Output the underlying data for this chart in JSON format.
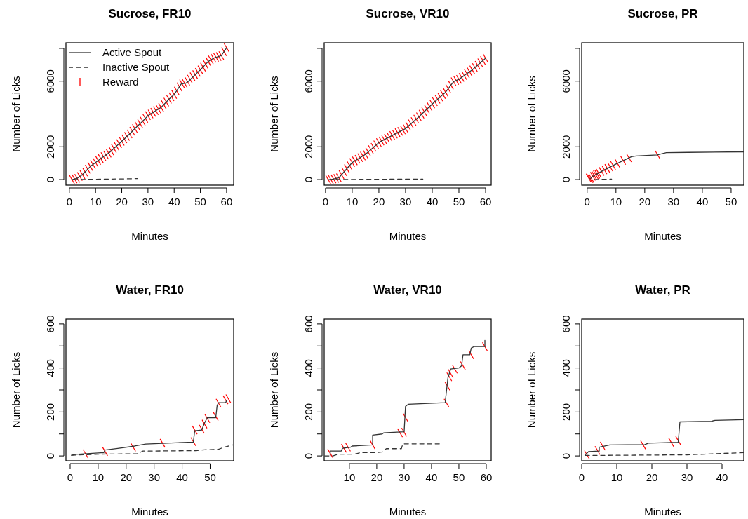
{
  "chart_data": [
    {
      "type": "line",
      "title": "Sucrose, FR10",
      "xlabel": "Minutes",
      "ylabel": "Number of Licks",
      "xlim": [
        -1.3,
        62.7
      ],
      "ylim": [
        -340,
        8340
      ],
      "xticks": [
        0,
        10,
        20,
        30,
        40,
        50,
        60
      ],
      "yticks": [
        0,
        2000,
        {
          "value": 4000,
          "label": null
        },
        6000,
        {
          "value": 8000,
          "label": null
        }
      ],
      "legend": "top left",
      "series": [
        {
          "name": "Active Spout",
          "line_style": "solid",
          "color": "#333333",
          "x": [
            1,
            3,
            5,
            8,
            10,
            13,
            15,
            18,
            20,
            23,
            25,
            28,
            30,
            33,
            35,
            38,
            40,
            42.7,
            44.5,
            45.5,
            48,
            50,
            53,
            55,
            58,
            60
          ],
          "values": [
            0,
            80,
            300,
            800,
            1040,
            1400,
            1610,
            2040,
            2330,
            2780,
            3110,
            3560,
            3900,
            4200,
            4400,
            4900,
            5190,
            5830,
            5880,
            6000,
            6400,
            6690,
            7200,
            7400,
            7560,
            8040
          ]
        },
        {
          "name": "Inactive Spout",
          "line_style": "dashed",
          "color": "#333333",
          "x": [
            1.5,
            10,
            20,
            26
          ],
          "values": [
            0,
            20,
            40,
            60
          ]
        },
        {
          "name": "Reward",
          "type": "scatter",
          "color": "#ff0000",
          "x": [
            1,
            2,
            3,
            4,
            5,
            6,
            7,
            8,
            9,
            10,
            11,
            12,
            13,
            14,
            15,
            16,
            17,
            18,
            19,
            20,
            21,
            22,
            23,
            24,
            25,
            26,
            27,
            28,
            29,
            30,
            31,
            32,
            33,
            34,
            35,
            36,
            37,
            38,
            39,
            40,
            41,
            42,
            43,
            44,
            45,
            46,
            47,
            48,
            49,
            50,
            51,
            52,
            53,
            54,
            55,
            56,
            57,
            58,
            59,
            60
          ],
          "values": [
            0,
            40,
            80,
            190,
            300,
            460,
            630,
            800,
            920,
            1040,
            1160,
            1280,
            1400,
            1500,
            1610,
            1750,
            1900,
            2040,
            2190,
            2330,
            2480,
            2630,
            2780,
            2950,
            3110,
            3260,
            3410,
            3560,
            3730,
            3900,
            4000,
            4100,
            4200,
            4300,
            4400,
            4570,
            4730,
            4900,
            5050,
            5190,
            5400,
            5650,
            5840,
            5870,
            6000,
            6130,
            6270,
            6400,
            6540,
            6690,
            6860,
            7030,
            7200,
            7300,
            7400,
            7450,
            7500,
            7560,
            7800,
            8040
          ]
        }
      ]
    },
    {
      "type": "line",
      "title": "Sucrose, VR10",
      "xlabel": "Minutes",
      "ylabel": "Number of Licks",
      "xlim": [
        -0.5,
        62.1
      ],
      "ylim": [
        -340,
        8340
      ],
      "xticks": [
        0,
        10,
        20,
        30,
        40,
        50,
        60
      ],
      "yticks": [
        0,
        2000,
        {
          "value": 4000,
          "label": null
        },
        6000,
        {
          "value": 8000,
          "label": null
        }
      ],
      "series": [
        {
          "line_style": "solid",
          "color": "#333333",
          "x": [
            2,
            5,
            10,
            15,
            20,
            25,
            30,
            35,
            40,
            45,
            48,
            50,
            55,
            60
          ],
          "values": [
            0,
            110,
            1040,
            1540,
            2260,
            2690,
            3110,
            3830,
            4610,
            5330,
            5970,
            6110,
            6690,
            7400
          ]
        },
        {
          "line_style": "dashed",
          "color": "#333333",
          "x": [
            1,
            10,
            20,
            36.5
          ],
          "values": [
            0,
            10,
            20,
            30
          ]
        },
        {
          "type": "scatter",
          "color": "#ff0000",
          "x": [
            1,
            2,
            3,
            4,
            5,
            6,
            7,
            8,
            9,
            10,
            11,
            12,
            13,
            14,
            15,
            16,
            17,
            18,
            19,
            20,
            21,
            22,
            23,
            24,
            25,
            26,
            27,
            28,
            29,
            30,
            31,
            32,
            33,
            34,
            35,
            36,
            37,
            38,
            39,
            40,
            41,
            42,
            43,
            44,
            45,
            46,
            47,
            48,
            49,
            50,
            51,
            52,
            53,
            54,
            55,
            56,
            57,
            58,
            59,
            60
          ],
          "values": [
            0,
            0,
            40,
            70,
            110,
            300,
            480,
            670,
            860,
            1040,
            1140,
            1240,
            1340,
            1440,
            1540,
            1680,
            1830,
            1970,
            2120,
            2260,
            2350,
            2430,
            2520,
            2600,
            2690,
            2770,
            2860,
            2940,
            3030,
            3110,
            3250,
            3400,
            3540,
            3690,
            3830,
            3990,
            4140,
            4300,
            4450,
            4610,
            4750,
            4900,
            5040,
            5190,
            5330,
            5540,
            5760,
            5970,
            6040,
            6110,
            6230,
            6340,
            6460,
            6570,
            6690,
            6830,
            6970,
            7120,
            7260,
            7400
          ]
        }
      ]
    },
    {
      "type": "line",
      "title": "Sucrose, PR",
      "xlabel": "Minutes",
      "ylabel": "Number of Licks",
      "xlim": [
        -1.9,
        54.4
      ],
      "ylim": [
        -340,
        8340
      ],
      "xticks": [
        0,
        10,
        20,
        30,
        40,
        50
      ],
      "yticks": [
        0,
        2000,
        {
          "value": 4000,
          "label": null
        },
        6000,
        {
          "value": 8000,
          "label": null
        }
      ],
      "series": [
        {
          "line_style": "solid",
          "color": "#333333",
          "x": [
            1,
            2,
            5,
            10,
            15.4,
            17,
            24.3,
            27.5,
            35,
            54.3
          ],
          "values": [
            50,
            200,
            500,
            950,
            1400,
            1440,
            1500,
            1640,
            1660,
            1690
          ]
        },
        {
          "line_style": "dashed",
          "color": "#333333",
          "x": [
            2.5,
            8.5
          ],
          "values": [
            0,
            30
          ]
        },
        {
          "type": "scatter",
          "color": "#ff0000",
          "x": [
            0.5,
            1,
            1.5,
            2,
            2.5,
            3,
            3.5,
            4,
            5,
            6,
            7,
            8,
            9,
            10.5,
            12.5,
            14.5,
            24.5
          ],
          "values": [
            100,
            50,
            60,
            200,
            230,
            290,
            330,
            380,
            500,
            590,
            680,
            770,
            860,
            990,
            1170,
            1330,
            1500
          ]
        }
      ]
    },
    {
      "type": "line",
      "title": "Water, FR10",
      "xlabel": "Minutes",
      "ylabel": "Number of Licks",
      "xlim": [
        -1.5,
        58.4
      ],
      "ylim": [
        -22,
        622
      ],
      "xticks": [
        0,
        10,
        20,
        30,
        40,
        50
      ],
      "yticks": [
        0,
        {
          "value": 100,
          "label": null
        },
        200,
        {
          "value": 300,
          "label": null
        },
        400,
        {
          "value": 500,
          "label": null
        },
        600
      ],
      "series": [
        {
          "line_style": "solid",
          "color": "#333333",
          "x": [
            0.5,
            2,
            12,
            12.5,
            17,
            23,
            27,
            44,
            44.5,
            47,
            48,
            49,
            52,
            52.5,
            53,
            55.5,
            56
          ],
          "values": [
            3,
            7,
            15,
            27,
            34,
            45,
            54,
            63,
            115,
            118,
            150,
            174,
            174,
            230,
            242,
            242,
            255
          ]
        },
        {
          "line_style": "dashed",
          "color": "#333333",
          "x": [
            0.5,
            10,
            24,
            26,
            45,
            48,
            53,
            55,
            58
          ],
          "values": [
            3,
            8,
            10,
            22,
            24,
            28,
            30,
            40,
            50
          ]
        },
        {
          "type": "scatter",
          "color": "#ff0000",
          "x": [
            5.5,
            12.5,
            22.5,
            33,
            44,
            44.5,
            47,
            48,
            49,
            52,
            53,
            55.5,
            56.5
          ],
          "values": [
            10,
            20,
            40,
            58,
            65,
            118,
            122,
            145,
            170,
            180,
            240,
            255,
            260
          ]
        }
      ]
    },
    {
      "type": "line",
      "title": "Water, VR10",
      "xlabel": "Minutes",
      "ylabel": "Number of Licks",
      "xlim": [
        0.8,
        61.8
      ],
      "ylim": [
        -22,
        622
      ],
      "xticks": [
        10,
        20,
        30,
        40,
        50,
        60
      ],
      "yticks": [
        0,
        {
          "value": 100,
          "label": null
        },
        200,
        {
          "value": 300,
          "label": null
        },
        400,
        {
          "value": 500,
          "label": null
        },
        600
      ],
      "series": [
        {
          "line_style": "solid",
          "color": "#333333",
          "x": [
            3,
            3,
            7,
            7.5,
            10.5,
            11,
            18.5,
            18.5,
            22,
            22.5,
            30,
            30.5,
            31.5,
            45,
            45.5,
            46,
            47,
            50,
            51,
            51.5,
            54,
            54.5,
            55.5,
            59.5,
            59.5
          ],
          "values": [
            0,
            22,
            22,
            35,
            40,
            45,
            50,
            95,
            100,
            105,
            110,
            225,
            235,
            242,
            300,
            355,
            395,
            400,
            410,
            460,
            460,
            490,
            497,
            497,
            525
          ]
        },
        {
          "line_style": "dashed",
          "color": "#333333",
          "x": [
            1,
            4,
            6,
            12,
            14,
            20,
            22,
            23.5,
            29,
            29.5,
            43.5
          ],
          "values": [
            0,
            0,
            8,
            8,
            15,
            15,
            18,
            33,
            33,
            55,
            55
          ]
        },
        {
          "type": "scatter",
          "color": "#ff0000",
          "x": [
            3,
            8,
            9.5,
            18.5,
            28.5,
            30,
            30.5,
            45.5,
            45.8,
            46.5,
            47,
            48.5,
            51.5,
            54.5,
            59.5
          ],
          "values": [
            12,
            35,
            40,
            50,
            105,
            108,
            175,
            240,
            318,
            360,
            375,
            395,
            410,
            460,
            497
          ]
        }
      ]
    },
    {
      "type": "line",
      "title": "Water, PR",
      "xlabel": "Minutes",
      "ylabel": "Number of Licks",
      "xlim": [
        0,
        46.2
      ],
      "ylim": [
        -22,
        622
      ],
      "xticks": [
        0,
        10,
        20,
        30,
        40
      ],
      "yticks": [
        0,
        {
          "value": 100,
          "label": null
        },
        200,
        {
          "value": 300,
          "label": null
        },
        400,
        {
          "value": 500,
          "label": null
        },
        600
      ],
      "series": [
        {
          "line_style": "solid",
          "color": "#333333",
          "x": [
            1,
            2,
            5,
            5,
            8,
            18,
            19,
            27.5,
            28,
            37,
            38,
            46.2
          ],
          "values": [
            5,
            20,
            22,
            40,
            50,
            52,
            58,
            62,
            155,
            158,
            162,
            165
          ]
        },
        {
          "line_style": "dashed",
          "color": "#333333",
          "x": [
            1,
            30,
            46.2
          ],
          "values": [
            2,
            5,
            15
          ]
        },
        {
          "type": "scatter",
          "color": "#ff0000",
          "x": [
            1.5,
            4.5,
            6,
            17.5,
            25.5,
            27.5
          ],
          "values": [
            5,
            25,
            45,
            50,
            62,
            70
          ]
        }
      ]
    }
  ]
}
